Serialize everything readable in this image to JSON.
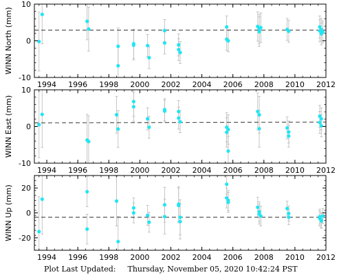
{
  "footer": {
    "label": "Plot Last Updated:",
    "datetime": "Thursday, November 05, 2020 10:42:24 PST"
  },
  "colors": {
    "point": "#22e5f3",
    "errorbar": "#b8b8b8",
    "fitline": "#555555",
    "axis": "#000000"
  },
  "chart_data": [
    {
      "type": "scatter",
      "ylabel": "WINN North (mm)",
      "xlim": [
        1993.2,
        2012.0
      ],
      "ylim": [
        -10,
        10
      ],
      "yticks": [
        -10,
        0,
        10
      ],
      "xticks": [
        1994,
        1996,
        1998,
        2000,
        2002,
        2004,
        2006,
        2008,
        2010,
        2012
      ],
      "trend": [
        [
          1993.2,
          2.9
        ],
        [
          2012.0,
          2.9
        ]
      ],
      "points": [
        {
          "x": 1993.5,
          "y": -0.2,
          "err": 8
        },
        {
          "x": 1993.7,
          "y": 7.2,
          "err": 8
        },
        {
          "x": 1996.6,
          "y": 5.3,
          "err": 5
        },
        {
          "x": 1996.7,
          "y": 3.2,
          "err": 6
        },
        {
          "x": 1998.6,
          "y": -6.8,
          "err": 5
        },
        {
          "x": 1998.6,
          "y": -1.5,
          "err": 5
        },
        {
          "x": 1999.6,
          "y": -0.8,
          "err": 4
        },
        {
          "x": 1999.6,
          "y": -1.2,
          "err": 4
        },
        {
          "x": 2000.5,
          "y": -1.3,
          "err": 3
        },
        {
          "x": 2000.6,
          "y": -4.6,
          "err": 3
        },
        {
          "x": 2001.6,
          "y": 2.8,
          "err": 3
        },
        {
          "x": 2001.6,
          "y": -0.6,
          "err": 3
        },
        {
          "x": 2002.5,
          "y": -1.1,
          "err": 3
        },
        {
          "x": 2002.5,
          "y": -2.4,
          "err": 3
        },
        {
          "x": 2002.6,
          "y": -3.2,
          "err": 3
        },
        {
          "x": 2005.6,
          "y": 3.8,
          "err": 3
        },
        {
          "x": 2005.6,
          "y": 0.4,
          "err": 3
        },
        {
          "x": 2005.7,
          "y": 0.0,
          "err": 3
        },
        {
          "x": 2007.6,
          "y": 3.9,
          "err": 4
        },
        {
          "x": 2007.7,
          "y": 3.2,
          "err": 4
        },
        {
          "x": 2007.7,
          "y": 2.5,
          "err": 4
        },
        {
          "x": 2007.8,
          "y": 3.6,
          "err": 4
        },
        {
          "x": 2009.5,
          "y": 3.1,
          "err": 3
        },
        {
          "x": 2009.6,
          "y": 2.6,
          "err": 3
        },
        {
          "x": 2011.6,
          "y": 3.8,
          "err": 3
        },
        {
          "x": 2011.6,
          "y": 2.7,
          "err": 3
        },
        {
          "x": 2011.7,
          "y": 1.9,
          "err": 3
        },
        {
          "x": 2011.7,
          "y": 3.1,
          "err": 3
        },
        {
          "x": 2011.8,
          "y": 2.4,
          "err": 3
        }
      ]
    },
    {
      "type": "scatter",
      "ylabel": "WINN East (mm)",
      "xlim": [
        1993.2,
        2012.0
      ],
      "ylim": [
        -10,
        10
      ],
      "yticks": [
        -10,
        0,
        10
      ],
      "xticks": [
        1994,
        1996,
        1998,
        2000,
        2002,
        2004,
        2006,
        2008,
        2010,
        2012
      ],
      "trend": [
        [
          1993.2,
          1.0
        ],
        [
          2012.0,
          1.2
        ]
      ],
      "points": [
        {
          "x": 1993.5,
          "y": 0.5,
          "err": 9
        },
        {
          "x": 1993.7,
          "y": 3.3,
          "err": 9
        },
        {
          "x": 1996.6,
          "y": -3.7,
          "err": 7
        },
        {
          "x": 1996.7,
          "y": -4.1,
          "err": 7
        },
        {
          "x": 1998.5,
          "y": 3.2,
          "err": 5
        },
        {
          "x": 1998.6,
          "y": -0.7,
          "err": 5
        },
        {
          "x": 1999.6,
          "y": 6.8,
          "err": 4
        },
        {
          "x": 1999.6,
          "y": 5.4,
          "err": 4
        },
        {
          "x": 2000.5,
          "y": 2.1,
          "err": 3
        },
        {
          "x": 2000.6,
          "y": -0.2,
          "err": 3
        },
        {
          "x": 2001.6,
          "y": 4.6,
          "err": 3
        },
        {
          "x": 2001.6,
          "y": 4.2,
          "err": 3
        },
        {
          "x": 2002.5,
          "y": 4.1,
          "err": 3
        },
        {
          "x": 2002.5,
          "y": 2.3,
          "err": 3
        },
        {
          "x": 2002.6,
          "y": 1.3,
          "err": 3
        },
        {
          "x": 2005.6,
          "y": -0.2,
          "err": 4
        },
        {
          "x": 2005.6,
          "y": -1.6,
          "err": 4
        },
        {
          "x": 2005.7,
          "y": -6.7,
          "err": 4
        },
        {
          "x": 2005.7,
          "y": -0.8,
          "err": 4
        },
        {
          "x": 2007.6,
          "y": 4.1,
          "err": 5
        },
        {
          "x": 2007.7,
          "y": 3.2,
          "err": 5
        },
        {
          "x": 2007.7,
          "y": -0.6,
          "err": 5
        },
        {
          "x": 2009.5,
          "y": -0.4,
          "err": 3
        },
        {
          "x": 2009.6,
          "y": -1.5,
          "err": 3
        },
        {
          "x": 2009.6,
          "y": -2.6,
          "err": 3
        },
        {
          "x": 2011.6,
          "y": 2.8,
          "err": 3
        },
        {
          "x": 2011.6,
          "y": 1.1,
          "err": 3
        },
        {
          "x": 2011.7,
          "y": 0.2,
          "err": 3
        },
        {
          "x": 2011.7,
          "y": 2.1,
          "err": 3
        }
      ]
    },
    {
      "type": "scatter",
      "ylabel": "WINN Up (mm)",
      "xlim": [
        1993.2,
        2012.0
      ],
      "ylim": [
        -30,
        30
      ],
      "yticks": [
        -20,
        0,
        20
      ],
      "xticks": [
        1994,
        1996,
        1998,
        2000,
        2002,
        2004,
        2006,
        2008,
        2010,
        2012
      ],
      "trend": [
        [
          1993.2,
          -3.5
        ],
        [
          2012.0,
          -3.5
        ]
      ],
      "points": [
        {
          "x": 1993.5,
          "y": -15.0,
          "err": 28
        },
        {
          "x": 1993.7,
          "y": 11.0,
          "err": 28
        },
        {
          "x": 1996.6,
          "y": 17.0,
          "err": 12
        },
        {
          "x": 1996.6,
          "y": -13.0,
          "err": 12
        },
        {
          "x": 1998.5,
          "y": 9.5,
          "err": 20
        },
        {
          "x": 1998.6,
          "y": -23.0,
          "err": 20
        },
        {
          "x": 1999.6,
          "y": 4.0,
          "err": 8
        },
        {
          "x": 1999.6,
          "y": 0.0,
          "err": 8
        },
        {
          "x": 2000.5,
          "y": -2.0,
          "err": 8
        },
        {
          "x": 2000.6,
          "y": -7.5,
          "err": 8
        },
        {
          "x": 2001.6,
          "y": 6.5,
          "err": 14
        },
        {
          "x": 2001.6,
          "y": -3.0,
          "err": 14
        },
        {
          "x": 2002.5,
          "y": 7.0,
          "err": 14
        },
        {
          "x": 2002.5,
          "y": 6.0,
          "err": 14
        },
        {
          "x": 2002.6,
          "y": -3.5,
          "err": 14
        },
        {
          "x": 2002.6,
          "y": -7.0,
          "err": 14
        },
        {
          "x": 2005.6,
          "y": 23.0,
          "err": 8
        },
        {
          "x": 2005.6,
          "y": 12.0,
          "err": 8
        },
        {
          "x": 2005.7,
          "y": 10.0,
          "err": 8
        },
        {
          "x": 2005.7,
          "y": 8.5,
          "err": 8
        },
        {
          "x": 2007.6,
          "y": 4.5,
          "err": 8
        },
        {
          "x": 2007.7,
          "y": 1.0,
          "err": 8
        },
        {
          "x": 2007.7,
          "y": -1.0,
          "err": 8
        },
        {
          "x": 2007.8,
          "y": -2.5,
          "err": 8
        },
        {
          "x": 2009.5,
          "y": 3.5,
          "err": 6
        },
        {
          "x": 2009.6,
          "y": -0.5,
          "err": 6
        },
        {
          "x": 2009.6,
          "y": -3.5,
          "err": 6
        },
        {
          "x": 2011.6,
          "y": -3.0,
          "err": 6
        },
        {
          "x": 2011.6,
          "y": -4.5,
          "err": 6
        },
        {
          "x": 2011.7,
          "y": -5.5,
          "err": 6
        },
        {
          "x": 2011.7,
          "y": -6.5,
          "err": 6
        },
        {
          "x": 2011.8,
          "y": -2.5,
          "err": 6
        }
      ]
    }
  ]
}
